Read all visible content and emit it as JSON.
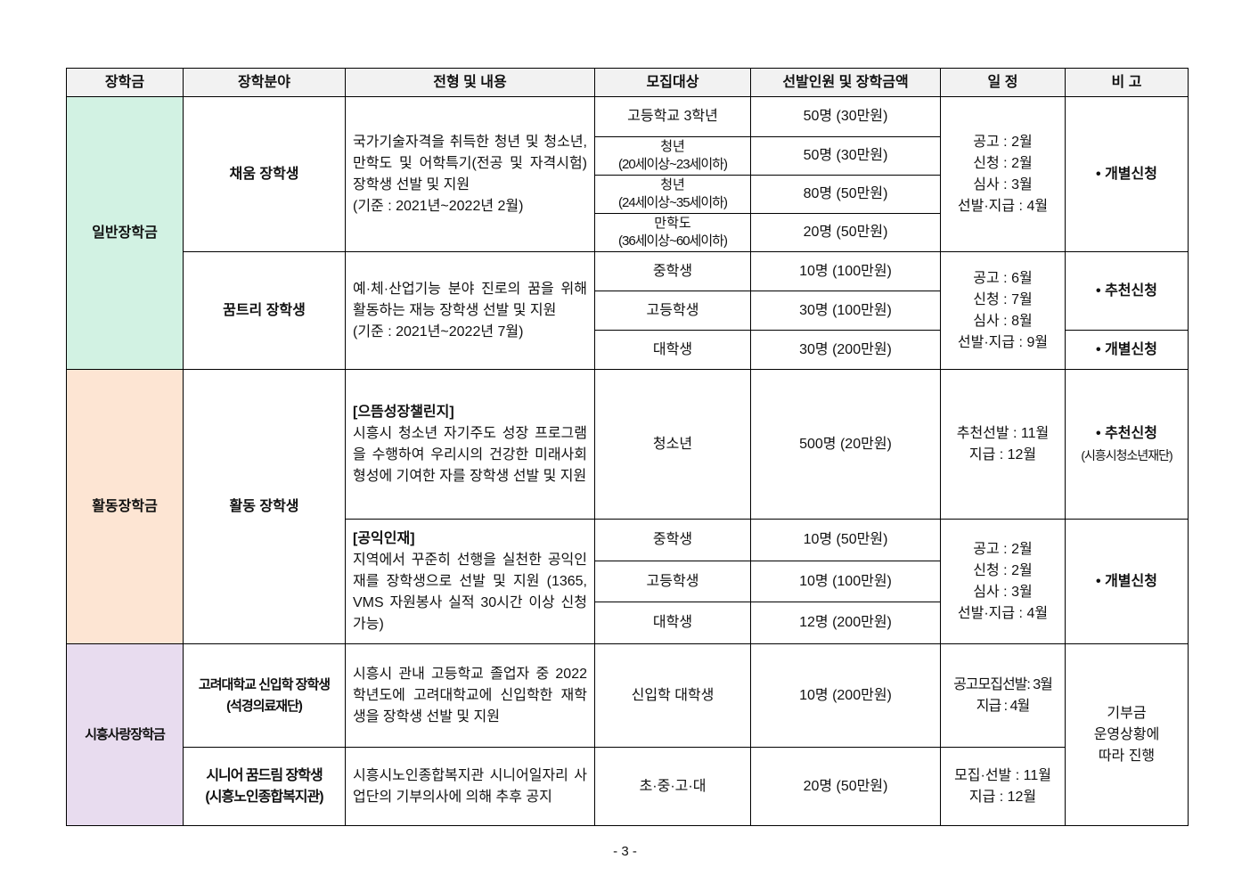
{
  "headers": [
    "장학금",
    "장학분야",
    "전형 및 내용",
    "모집대상",
    "선발인원 및 장학금액",
    "일 정",
    "비 고"
  ],
  "sections": [
    {
      "name": "일반장학금",
      "color": "#d2f2e3",
      "programs": [
        {
          "field": "채움 장학생",
          "content": "국가기술자격을 취득한 청년 및 청소년, 만학도 및 어학특기(전공 및 자격시험) 장학생 선발 및 지원",
          "criteria": "(기준 : 2021년~2022년 2월)",
          "targets": [
            {
              "target": "고등학교 3학년",
              "amount": "50명 (30만원)"
            },
            {
              "target": "청년",
              "target_sub": "(20세이상~23세이하)",
              "amount": "50명 (30만원)"
            },
            {
              "target": "청년",
              "target_sub": "(24세이상~35세이하)",
              "amount": "80명 (50만원)"
            },
            {
              "target": "만학도",
              "target_sub": "(36세이상~60세이하)",
              "amount": "20명 (50만원)"
            }
          ],
          "schedule": [
            "공고 : 2월",
            "신청 : 2월",
            "심사 : 3월",
            "선발·지급 : 4월"
          ],
          "note": "• 개별신청"
        },
        {
          "field": "꿈트리 장학생",
          "content": "예·체·산업기능 분야 진로의 꿈을 위해 활동하는 재능 장학생 선발 및 지원",
          "criteria": "(기준 : 2021년~2022년 7월)",
          "targets": [
            {
              "target": "중학생",
              "amount": "10명 (100만원)"
            },
            {
              "target": "고등학생",
              "amount": "30명 (100만원)"
            },
            {
              "target": "대학생",
              "amount": "30명 (200만원)"
            }
          ],
          "schedule": [
            "공고 : 6월",
            "신청 : 7월",
            "심사 : 8월",
            "선발·지급 : 9월"
          ],
          "note": "• 추천신청",
          "note2": "• 개별신청"
        }
      ]
    },
    {
      "name": "활동장학금",
      "color": "#fde5d3",
      "programs": [
        {
          "field": "활동 장학생",
          "sub": [
            {
              "title": "[으뜸성장챌린지]",
              "content": "시흥시 청소년 자기주도 성장 프로그램을 수행하여 우리시의 건강한 미래사회 형성에 기여한 자를 장학생 선발 및 지원",
              "targets": [
                {
                  "target": "청소년",
                  "amount": "500명 (20만원)"
                }
              ],
              "schedule": [
                "추천선발 : 11월",
                "지급 : 12월"
              ],
              "note": "• 추천신청",
              "note_sub": "(시흥시청소년재단)"
            },
            {
              "title": "[공익인재]",
              "content": "지역에서 꾸준히 선행을 실천한 공익인재를 장학생으로 선발 및 지원 (1365, VMS 자원봉사 실적 30시간 이상 신청 가능)",
              "targets": [
                {
                  "target": "중학생",
                  "amount": "10명 (50만원)"
                },
                {
                  "target": "고등학생",
                  "amount": "10명 (100만원)"
                },
                {
                  "target": "대학생",
                  "amount": "12명 (200만원)"
                }
              ],
              "schedule": [
                "공고 : 2월",
                "신청 : 2월",
                "심사 : 3월",
                "선발·지급 : 4월"
              ],
              "note": "• 개별신청"
            }
          ]
        }
      ]
    },
    {
      "name": "시흥사랑장학금",
      "color": "#e8dcef",
      "programs": [
        {
          "field": "고려대학교 신입학 장학생",
          "field_sub": "(석경의료재단)",
          "content": "시흥시 관내 고등학교 졸업자 중 2022학년도에 고려대학교에 신입학한 재학생을 장학생 선발 및 지원",
          "targets": [
            {
              "target": "신입학 대학생",
              "amount": "10명 (200만원)"
            }
          ],
          "schedule": [
            "공고모집선발: 3월",
            "지급 : 4월"
          ]
        },
        {
          "field": "시니어 꿈드림 장학생",
          "field_sub": "(시흥노인종합복지관)",
          "content": "시흥시노인종합복지관 시니어일자리 사업단의 기부의사에 의해 추후 공지",
          "targets": [
            {
              "target": "초·중·고·대",
              "amount": "20명 (50만원)"
            }
          ],
          "schedule": [
            "모집·선발 : 11월",
            "지급 : 12월"
          ]
        }
      ],
      "note": [
        "기부금",
        "운영상황에",
        "따라 진행"
      ]
    }
  ],
  "page_number": "- 3 -"
}
